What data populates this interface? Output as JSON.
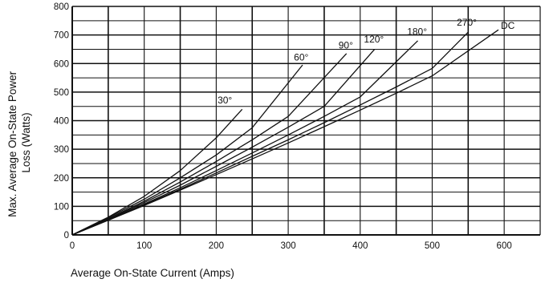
{
  "chart_data": {
    "type": "line",
    "xlabel": "Average On-State Current (Amps)",
    "ylabel_lines": [
      "Max. Average On-State Power",
      "Loss (Watts)"
    ],
    "xlim": [
      0,
      650
    ],
    "ylim": [
      0,
      800
    ],
    "x_ticks": [
      0,
      100,
      200,
      300,
      400,
      500,
      600
    ],
    "y_ticks": [
      0,
      100,
      200,
      300,
      400,
      500,
      600,
      700,
      800
    ],
    "y_tick_labels": [
      "0",
      "100",
      "200",
      "300",
      "400",
      "500",
      "600",
      "700",
      "800"
    ],
    "grid": true,
    "series": [
      {
        "name": "30°",
        "x": [
          0,
          50,
          100,
          150,
          200,
          236
        ],
        "y": [
          0,
          62,
          135,
          225,
          340,
          440
        ],
        "label_at": [
          212,
          460
        ]
      },
      {
        "name": "60°",
        "x": [
          0,
          50,
          100,
          150,
          200,
          250,
          320
        ],
        "y": [
          0,
          60,
          125,
          200,
          280,
          375,
          595
        ],
        "label_at": [
          318,
          610
        ]
      },
      {
        "name": "90°",
        "x": [
          0,
          50,
          100,
          150,
          200,
          250,
          300,
          381
        ],
        "y": [
          0,
          57,
          118,
          185,
          257,
          333,
          415,
          635
        ],
        "label_at": [
          380,
          652
        ]
      },
      {
        "name": "120°",
        "x": [
          0,
          50,
          100,
          150,
          200,
          250,
          300,
          350,
          420
        ],
        "y": [
          0,
          55,
          113,
          174,
          240,
          307,
          377,
          450,
          650
        ],
        "label_at": [
          419,
          673
        ]
      },
      {
        "name": "180°",
        "x": [
          0,
          50,
          100,
          150,
          200,
          250,
          300,
          350,
          400,
          480
        ],
        "y": [
          0,
          53,
          108,
          165,
          225,
          287,
          350,
          415,
          483,
          680
        ],
        "label_at": [
          479,
          700
        ]
      },
      {
        "name": "270°",
        "x": [
          0,
          50,
          100,
          150,
          200,
          250,
          300,
          350,
          400,
          450,
          500,
          550
        ],
        "y": [
          0,
          52,
          105,
          160,
          217,
          275,
          333,
          393,
          455,
          518,
          583,
          710
        ],
        "label_at": [
          548,
          732
        ]
      },
      {
        "name": "DC",
        "x": [
          0,
          50,
          100,
          150,
          200,
          250,
          300,
          350,
          400,
          450,
          500,
          592
        ],
        "y": [
          0,
          51,
          103,
          157,
          211,
          266,
          322,
          379,
          437,
          496,
          557,
          718
        ],
        "label_at": [
          605,
          722
        ]
      }
    ]
  }
}
